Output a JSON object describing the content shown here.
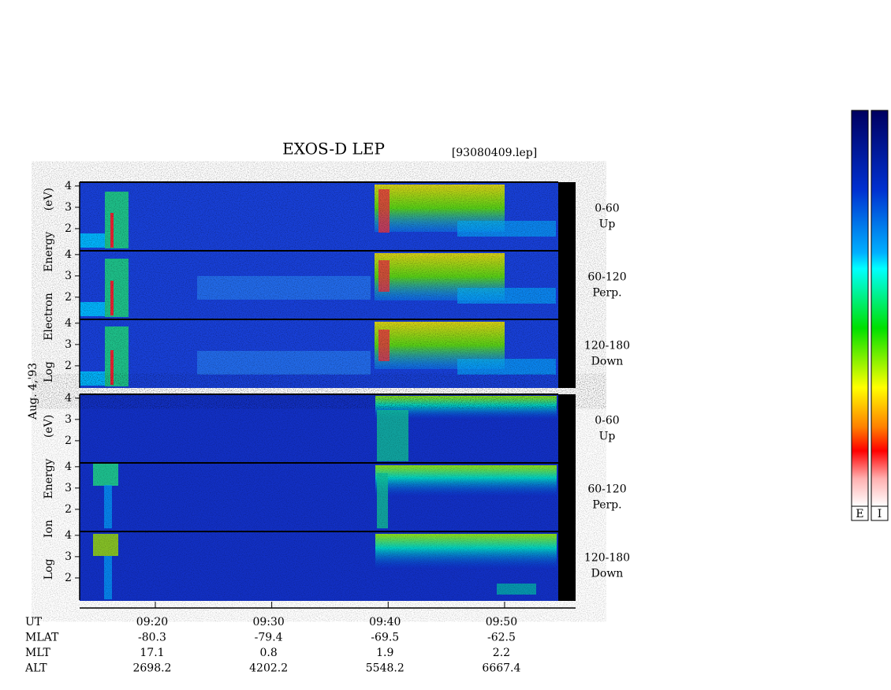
{
  "title": "EXOS-D LEP",
  "file": "[93080409.lep]",
  "date": "Aug. 4,'93",
  "chart_data": {
    "type": "spectrogram",
    "xlim": [
      553.5,
      596.1
    ],
    "xticks": [
      {
        "value": 560,
        "label": "09:20"
      },
      {
        "value": 570,
        "label": "09:30"
      },
      {
        "value": 580,
        "label": "09:40"
      },
      {
        "value": 590,
        "label": "09:50"
      }
    ],
    "groups": [
      {
        "ylabel": "Log Electron Energy (eV)",
        "panels": [
          {
            "pitch": "0-60",
            "direction": "Up"
          },
          {
            "pitch": "60-120",
            "direction": "Perp."
          },
          {
            "pitch": "120-180",
            "direction": "Down"
          }
        ]
      },
      {
        "ylabel": "Log Ion Energy (eV)",
        "panels": [
          {
            "pitch": "0-60",
            "direction": "Up"
          },
          {
            "pitch": "60-120",
            "direction": "Perp."
          },
          {
            "pitch": "120-180",
            "direction": "Down"
          }
        ]
      }
    ],
    "ylim": [
      0.96,
      4.18
    ],
    "yticks": [
      2,
      3,
      4
    ],
    "ephemeris": [
      {
        "label": "UT"
      },
      {
        "label": "MLAT",
        "values": [
          -80.3,
          -79.4,
          -69.5,
          -62.5
        ]
      },
      {
        "label": "MLT",
        "values": [
          17.1,
          0.8,
          1.9,
          2.2
        ]
      },
      {
        "label": "ALT",
        "values": [
          2698.2,
          4202.2,
          5548.2,
          6667.4
        ]
      }
    ],
    "colorbars": [
      "E",
      "I"
    ]
  }
}
